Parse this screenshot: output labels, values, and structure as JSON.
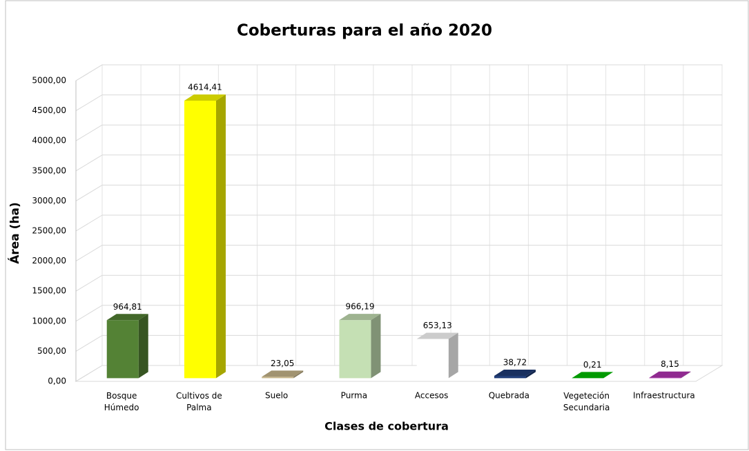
{
  "chart_data": {
    "type": "bar3d",
    "title": "Coberturas para el año 2020",
    "x_label": "Clases de cobertura",
    "y_label": "Área (ha)",
    "categories": [
      "Bosque Húmedo",
      "Cultivos de Palma",
      "Suelo",
      "Purma",
      "Accesos",
      "Quebrada",
      "Vegeteción Secundaria",
      "Infraestructura"
    ],
    "values": [
      964.81,
      4614.41,
      23.05,
      966.19,
      653.13,
      38.72,
      0.21,
      8.15
    ],
    "value_labels": [
      "964,81",
      "4614,41",
      "23,05",
      "966,19",
      "653,13",
      "38,72",
      "0,21",
      "8,15"
    ],
    "colors": [
      "#548235",
      "#ffff00",
      "#c9b88c",
      "#c5e0b4",
      "#ffffff",
      "#1f3c78",
      "#00c000",
      "#b434b4"
    ],
    "ylim": [
      0,
      5000
    ],
    "yticks": [
      {
        "value": 0,
        "label": "0,00"
      },
      {
        "value": 500,
        "label": "500,00"
      },
      {
        "value": 1000,
        "label": "1000,00"
      },
      {
        "value": 1500,
        "label": "1500,00"
      },
      {
        "value": 2000,
        "label": "2000,00"
      },
      {
        "value": 2500,
        "label": "2500,00"
      },
      {
        "value": 3000,
        "label": "3000,00"
      },
      {
        "value": 3500,
        "label": "3500,00"
      },
      {
        "value": 4000,
        "label": "4000,00"
      },
      {
        "value": 4500,
        "label": "4500,00"
      },
      {
        "value": 5000,
        "label": "5000,00"
      }
    ],
    "grid": true
  }
}
